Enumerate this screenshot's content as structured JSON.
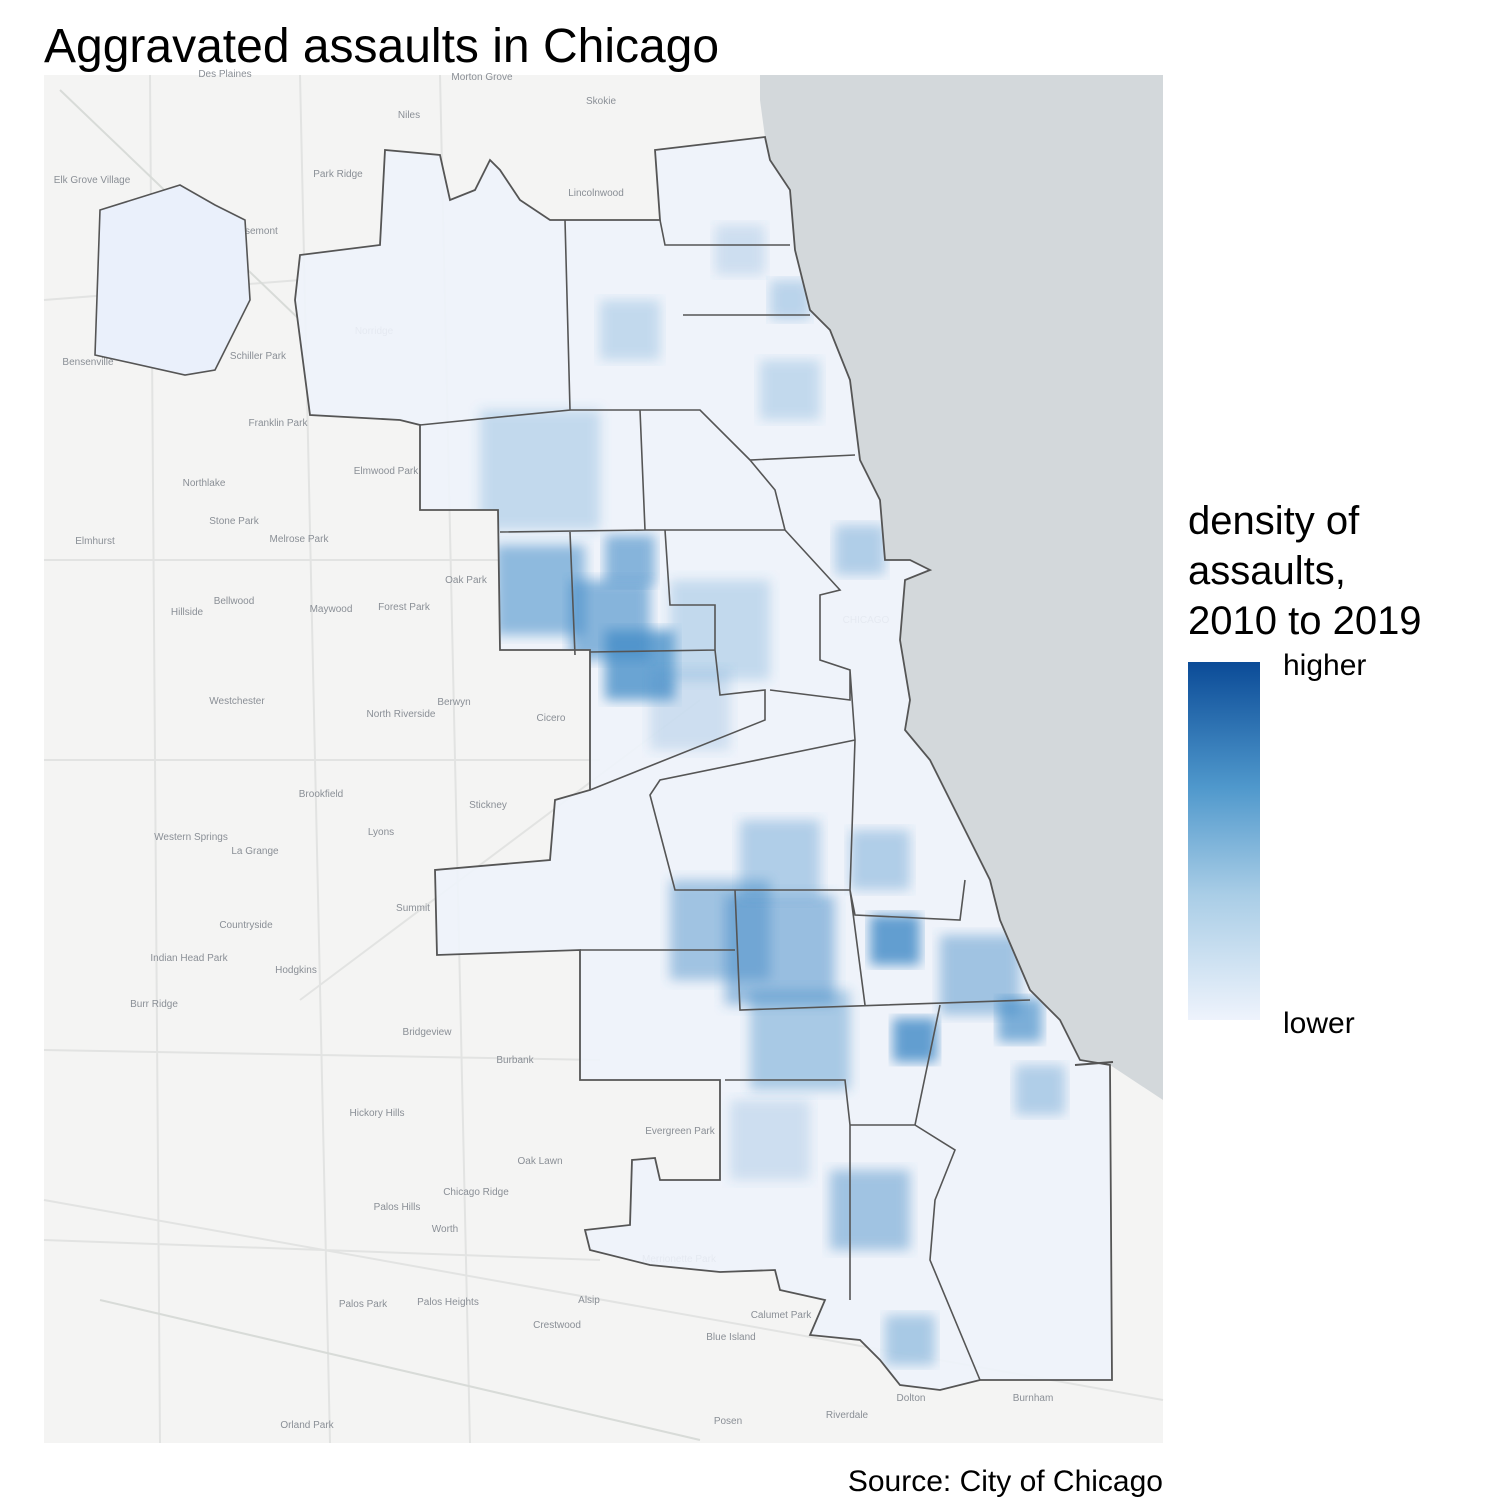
{
  "title": "Aggravated assaults in Chicago",
  "legend": {
    "title": [
      "density of",
      "assaults,",
      "2010 to 2019"
    ],
    "high_label": "higher",
    "low_label": "lower"
  },
  "caption": "Source: City of Chicago",
  "places": [
    "Des Plaines",
    "Morton Grove",
    "Skokie",
    "Niles",
    "Park Ridge",
    "Lincolnwood",
    "Elk Grove Village",
    "Rosemont",
    "Norridge",
    "Schiller Park",
    "Bensenville",
    "Franklin Park",
    "Northlake",
    "Elmwood Park",
    "Stone Park",
    "Melrose Park",
    "Elmhurst",
    "Oak Park",
    "Bellwood",
    "Hillside",
    "Maywood",
    "Forest Park",
    "Westchester",
    "North Riverside",
    "Berwyn",
    "Cicero",
    "Brookfield",
    "Stickney",
    "Lyons",
    "Western Springs",
    "La Grange",
    "Summit",
    "Countryside",
    "Indian Head Park",
    "Hodgkins",
    "Burr Ridge",
    "Bridgeview",
    "Burbank",
    "Hickory Hills",
    "Evergreen Park",
    "Oak Lawn",
    "Chicago Ridge",
    "Palos Hills",
    "Worth",
    "Merrionette Park",
    "Alsip",
    "Calumet Park",
    "Palos Park",
    "Palos Heights",
    "Crestwood",
    "Blue Island",
    "Dolton",
    "Burnham",
    "Riverdale",
    "Posen",
    "Orland Park",
    "CHICAGO"
  ]
}
